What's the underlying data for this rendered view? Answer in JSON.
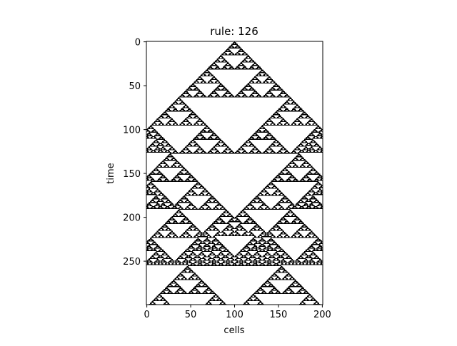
{
  "chart_data": {
    "type": "heatmap",
    "title": "rule: 126",
    "xlabel": "cells",
    "ylabel": "time",
    "rule": 126,
    "width": 201,
    "steps": 300,
    "initial_condition": "single-center",
    "boundary": "wrap",
    "xlim": [
      0,
      200
    ],
    "ylim": [
      0,
      299
    ],
    "xticks": [
      0,
      50,
      100,
      150,
      200
    ],
    "yticks": [
      0,
      50,
      100,
      150,
      200,
      250
    ],
    "y_inverted": true,
    "grid": false,
    "colors": {
      "on": "#000000",
      "off": "#ffffff"
    }
  },
  "plot": {
    "title": "rule: 126",
    "xlabel": "cells",
    "ylabel": "time"
  }
}
